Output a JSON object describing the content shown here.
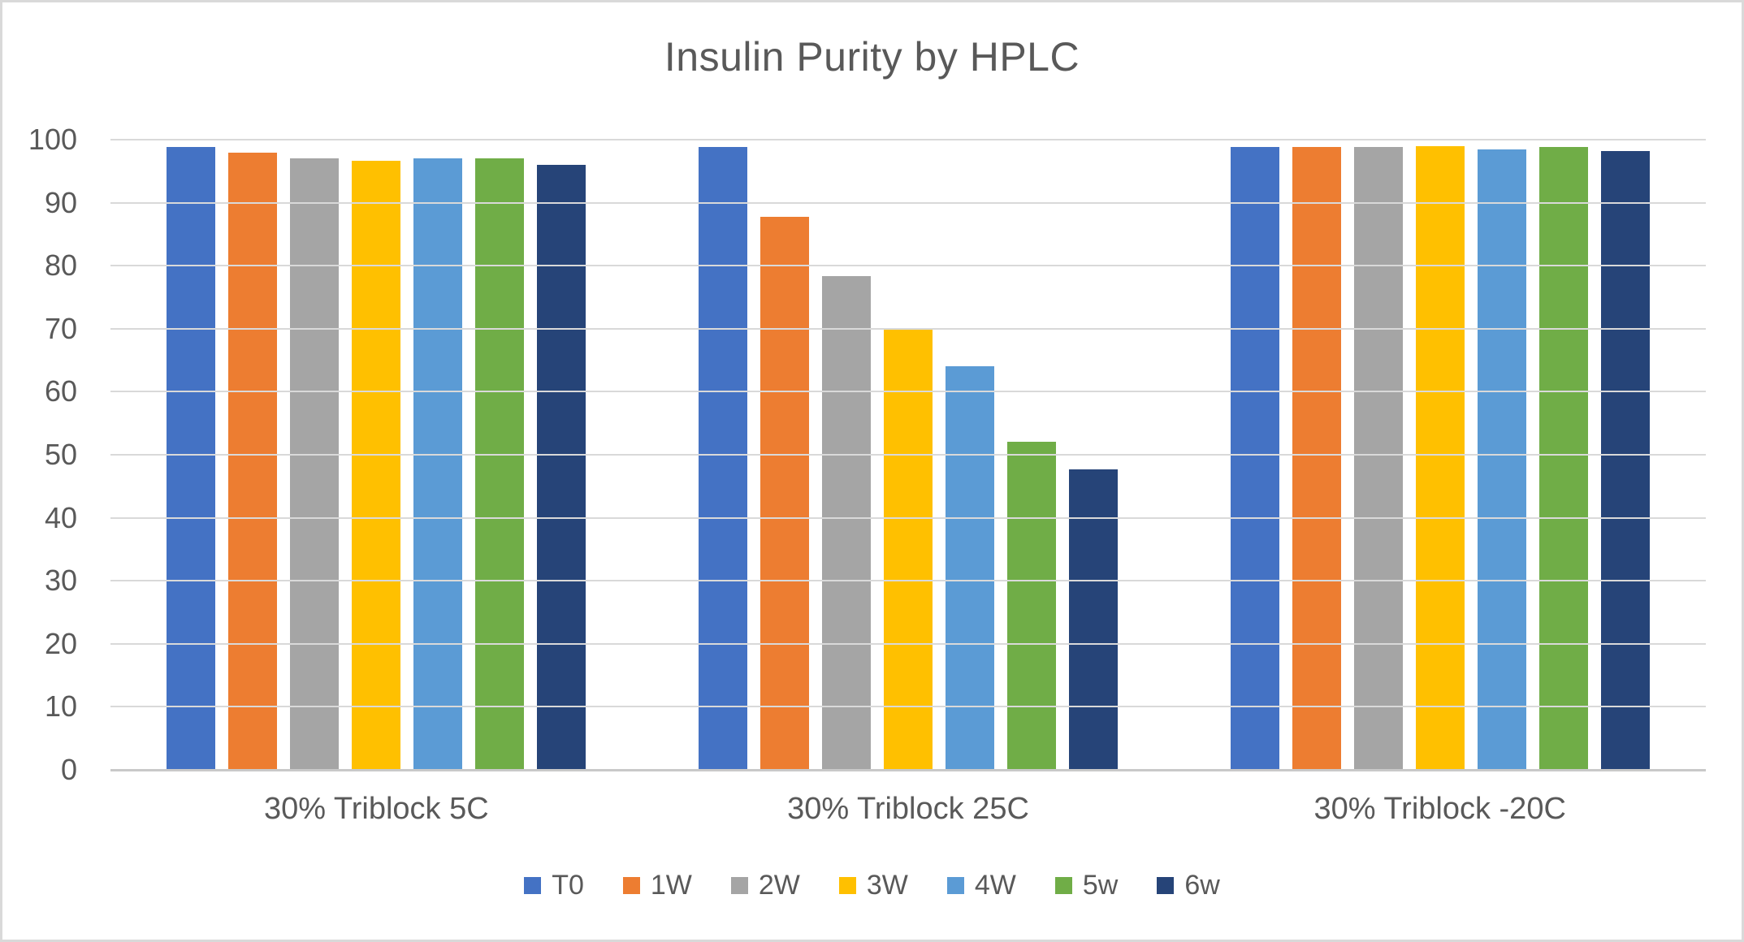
{
  "chart_data": {
    "type": "bar",
    "title": "Insulin Purity by HPLC",
    "categories": [
      "30% Triblock 5C",
      "30% Triblock 25C",
      "30% Triblock -20C"
    ],
    "series": [
      {
        "name": "T0",
        "color": "#4472C4",
        "values": [
          98.9,
          98.9,
          98.9
        ]
      },
      {
        "name": "1W",
        "color": "#ED7D31",
        "values": [
          98.0,
          87.8,
          98.9
        ]
      },
      {
        "name": "2W",
        "color": "#A5A5A5",
        "values": [
          97.1,
          78.4,
          98.9
        ]
      },
      {
        "name": "3W",
        "color": "#FFC000",
        "values": [
          96.7,
          70.0,
          99.0
        ]
      },
      {
        "name": "4W",
        "color": "#5B9BD5",
        "values": [
          97.1,
          64.0,
          98.5
        ]
      },
      {
        "name": "5w",
        "color": "#70AD47",
        "values": [
          97.0,
          52.0,
          98.9
        ]
      },
      {
        "name": "6w",
        "color": "#264478",
        "values": [
          96.0,
          47.7,
          98.2
        ]
      }
    ],
    "ylim": [
      0,
      100
    ],
    "ytick_step": 10,
    "yticks": [
      0,
      10,
      20,
      30,
      40,
      50,
      60,
      70,
      80,
      90,
      100
    ],
    "grid": true,
    "legend_position": "bottom",
    "text_color": "#595959",
    "gridline_color": "#D9D9D9"
  }
}
